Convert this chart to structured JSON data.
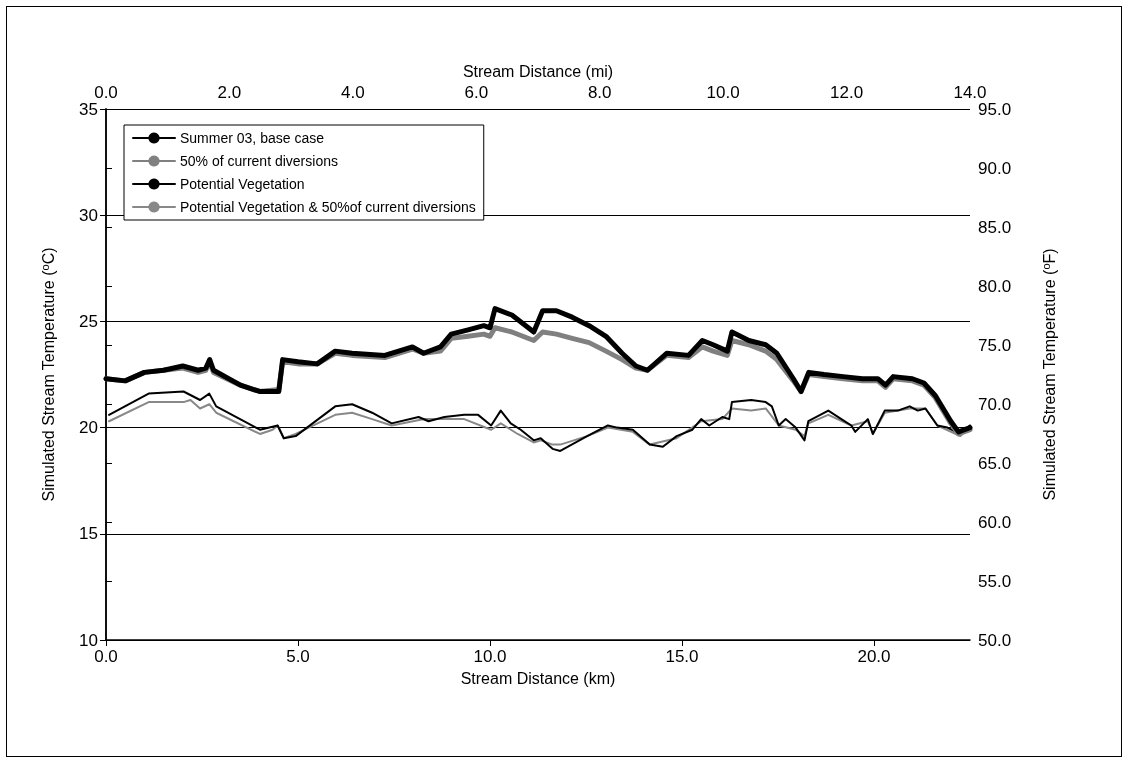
{
  "chart_data": {
    "type": "line",
    "xlabel": "Stream Distance (km)",
    "x2label": "Stream Distance (mi)",
    "ylabel": "Simulated Stream Temperature ($^{o}$C)",
    "y2label": "Simulated Stream Temperature ($^{o}$F)",
    "xlim": [
      0,
      22.5
    ],
    "xticks": [
      {
        "value": 0,
        "label": "0.0"
      },
      {
        "value": 5,
        "label": "5.0"
      },
      {
        "value": 10,
        "label": "10.0"
      },
      {
        "value": 15,
        "label": "15.0"
      },
      {
        "value": 20,
        "label": "20.0"
      }
    ],
    "x2lim": [
      0,
      14
    ],
    "x2ticks": [
      {
        "value": 0,
        "label": "0.0"
      },
      {
        "value": 2,
        "label": "2.0"
      },
      {
        "value": 4,
        "label": "4.0"
      },
      {
        "value": 6,
        "label": "6.0"
      },
      {
        "value": 8,
        "label": "8.0"
      },
      {
        "value": 10,
        "label": "10.0"
      },
      {
        "value": 12,
        "label": "12.0"
      },
      {
        "value": 14,
        "label": "14.0"
      }
    ],
    "ylim": [
      10,
      35
    ],
    "yticks": [
      10,
      15,
      20,
      25,
      30,
      35
    ],
    "y2lim": [
      50,
      95
    ],
    "y2ticks": [
      {
        "value": 50,
        "label": "50.0"
      },
      {
        "value": 55,
        "label": "55.0"
      },
      {
        "value": 60,
        "label": "60.0"
      },
      {
        "value": 65,
        "label": "65.0"
      },
      {
        "value": 70,
        "label": "70.0"
      },
      {
        "value": 75,
        "label": "75.0"
      },
      {
        "value": 80,
        "label": "80.0"
      },
      {
        "value": 85,
        "label": "85.0"
      },
      {
        "value": 90,
        "label": "90.0"
      },
      {
        "value": 95,
        "label": "95.0"
      }
    ],
    "grid": "y",
    "legend": "top left",
    "marker": "none",
    "line_style": "solid",
    "series": [
      {
        "name": "Summer 03, base case",
        "color": "#000000",
        "x": [
          0.0,
          0.5,
          1.0,
          1.5,
          2.0,
          2.4,
          2.6,
          2.7,
          2.8,
          3.5,
          4.0,
          4.5,
          4.6,
          5.0,
          5.5,
          5.97,
          6.41,
          7.26,
          7.98,
          8.27,
          8.71,
          8.99,
          9.43,
          9.84,
          10.0,
          10.13,
          10.57,
          11.14,
          11.37,
          11.73,
          12.14,
          12.58,
          13.02,
          13.44,
          13.8,
          14.1,
          14.6,
          15.17,
          15.53,
          15.81,
          16.18,
          16.3,
          16.74,
          17.18,
          17.47,
          17.9,
          18.1,
          18.3,
          18.7,
          19.2,
          19.7,
          20.1,
          20.3,
          20.5,
          21.0,
          21.3,
          21.6,
          22.0,
          22.2,
          22.5
        ],
        "values": [
          22.3,
          22.2,
          22.6,
          22.7,
          22.9,
          22.7,
          22.8,
          23.2,
          22.7,
          22.0,
          21.7,
          21.7,
          23.2,
          23.1,
          23.0,
          23.6,
          23.5,
          23.4,
          23.8,
          23.5,
          23.8,
          24.4,
          24.6,
          24.8,
          24.7,
          25.6,
          25.3,
          24.5,
          25.5,
          25.5,
          25.2,
          24.8,
          24.3,
          23.5,
          22.9,
          22.7,
          23.5,
          23.4,
          24.1,
          23.9,
          23.6,
          24.5,
          24.1,
          23.9,
          23.5,
          22.3,
          21.7,
          22.6,
          22.5,
          22.4,
          22.3,
          22.3,
          22.0,
          22.4,
          22.3,
          22.1,
          21.5,
          20.3,
          19.8,
          20.0
        ]
      },
      {
        "name": "50% of current diversions",
        "color": "#808080",
        "x": [
          0.0,
          0.5,
          1.0,
          1.5,
          2.0,
          2.4,
          2.6,
          2.7,
          2.8,
          3.5,
          4.0,
          4.5,
          4.6,
          5.0,
          5.5,
          5.97,
          6.41,
          7.26,
          7.98,
          8.27,
          8.71,
          8.99,
          9.43,
          9.84,
          10.0,
          10.13,
          10.57,
          11.14,
          11.37,
          11.73,
          12.14,
          12.58,
          13.02,
          13.44,
          13.8,
          14.1,
          14.6,
          15.17,
          15.53,
          15.81,
          16.18,
          16.3,
          16.74,
          17.18,
          17.47,
          17.9,
          18.1,
          18.3,
          18.7,
          19.2,
          19.7,
          20.1,
          20.3,
          20.5,
          21.0,
          21.3,
          21.6,
          22.0,
          22.2,
          22.5
        ],
        "values": [
          22.3,
          22.2,
          22.6,
          22.7,
          22.8,
          22.6,
          22.7,
          23.1,
          22.6,
          22.0,
          21.7,
          21.8,
          23.1,
          23.0,
          23.0,
          23.5,
          23.4,
          23.3,
          23.7,
          23.5,
          23.6,
          24.2,
          24.3,
          24.4,
          24.3,
          24.7,
          24.5,
          24.1,
          24.5,
          24.4,
          24.2,
          24.0,
          23.6,
          23.2,
          22.8,
          22.7,
          23.4,
          23.3,
          23.8,
          23.6,
          23.4,
          24.1,
          23.9,
          23.6,
          23.2,
          22.2,
          21.7,
          22.5,
          22.4,
          22.3,
          22.2,
          22.2,
          21.9,
          22.3,
          22.2,
          22.0,
          21.4,
          20.2,
          19.7,
          19.9
        ]
      },
      {
        "name": "Potential Vegetation",
        "color": "#000000",
        "x": [
          0.08,
          1.11,
          2.02,
          2.45,
          2.69,
          2.87,
          4.01,
          4.47,
          4.63,
          4.94,
          5.97,
          6.41,
          6.93,
          7.44,
          8.14,
          8.4,
          8.81,
          9.33,
          9.69,
          10.03,
          10.28,
          10.54,
          10.8,
          11.14,
          11.32,
          11.63,
          11.83,
          12.53,
          13.07,
          13.31,
          13.72,
          14.16,
          14.5,
          14.86,
          15.27,
          15.5,
          15.71,
          16.05,
          16.23,
          16.3,
          16.8,
          17.18,
          17.34,
          17.52,
          17.7,
          17.96,
          18.19,
          18.29,
          18.81,
          19.15,
          19.41,
          19.51,
          19.84,
          19.97,
          20.28,
          20.62,
          20.93,
          21.14,
          21.34,
          21.65,
          21.91,
          22.25,
          22.5
        ],
        "values": [
          20.6,
          21.6,
          21.7,
          21.3,
          21.6,
          21.0,
          19.9,
          20.1,
          19.5,
          19.6,
          21.0,
          21.1,
          20.7,
          20.2,
          20.5,
          20.3,
          20.5,
          20.6,
          20.6,
          20.1,
          20.8,
          20.2,
          19.9,
          19.4,
          19.5,
          19.0,
          18.9,
          19.6,
          20.1,
          20.0,
          19.9,
          19.2,
          19.1,
          19.6,
          19.9,
          20.4,
          20.1,
          20.5,
          20.4,
          21.2,
          21.3,
          21.2,
          21.0,
          20.1,
          20.4,
          20.0,
          19.4,
          20.3,
          20.8,
          20.4,
          20.1,
          19.8,
          20.4,
          19.7,
          20.8,
          20.8,
          21.0,
          20.8,
          20.9,
          20.1,
          20.0,
          19.7,
          20.1
        ]
      },
      {
        "name": "Potential Vegetation & 50%of current diversions",
        "color": "#888888",
        "x": [
          0.08,
          1.11,
          2.02,
          2.2,
          2.45,
          2.69,
          2.87,
          4.01,
          4.34,
          4.47,
          4.63,
          4.94,
          5.97,
          6.41,
          6.93,
          7.44,
          8.29,
          9.33,
          10.03,
          10.28,
          10.72,
          11.14,
          11.32,
          11.63,
          11.83,
          12.53,
          13.07,
          13.72,
          14.16,
          14.86,
          15.5,
          16.05,
          16.3,
          16.8,
          17.18,
          17.52,
          17.96,
          18.19,
          18.29,
          18.81,
          19.41,
          19.84,
          19.97,
          20.28,
          20.93,
          21.34,
          21.65,
          22.25,
          22.5
        ],
        "values": [
          20.3,
          21.2,
          21.2,
          21.3,
          20.9,
          21.1,
          20.7,
          19.7,
          19.9,
          20.1,
          19.5,
          19.7,
          20.6,
          20.7,
          20.4,
          20.1,
          20.4,
          20.4,
          19.9,
          20.2,
          19.7,
          19.3,
          19.4,
          19.2,
          19.2,
          19.6,
          20.0,
          19.8,
          19.2,
          19.5,
          20.3,
          20.4,
          20.9,
          20.8,
          20.9,
          20.1,
          19.9,
          19.6,
          20.2,
          20.6,
          20.1,
          20.3,
          19.7,
          20.7,
          20.9,
          20.9,
          20.1,
          19.6,
          20.1
        ]
      }
    ]
  }
}
